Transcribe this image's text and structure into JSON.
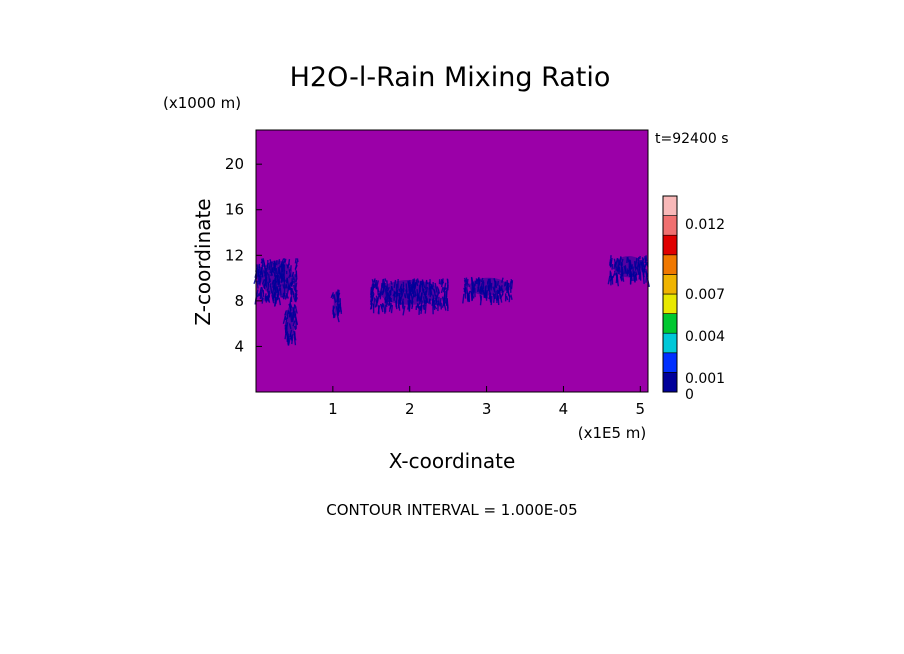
{
  "chart_data": {
    "type": "heatmap",
    "title": "H2O-l-Rain Mixing Ratio",
    "ylabel": "Z-coordinate",
    "yunit": "(x1000 m)",
    "xlabel": "X-coordinate",
    "xunit": "(x1E5 m)",
    "time_label": "t=92400 s",
    "footer": "CONTOUR INTERVAL = 1.000E-05",
    "xlim": [
      0,
      5.1
    ],
    "ylim": [
      0,
      23
    ],
    "x_ticks": [
      "1",
      "2",
      "3",
      "4",
      "5"
    ],
    "x_tick_values": [
      1,
      2,
      3,
      4,
      5
    ],
    "y_ticks": [
      "4",
      "8",
      "12",
      "16",
      "20"
    ],
    "y_tick_values": [
      4,
      8,
      12,
      16,
      20
    ],
    "background_color": "#9b00a8",
    "colorbar": {
      "colors": [
        "#00009a",
        "#0030ff",
        "#00c8d8",
        "#00c830",
        "#e8e800",
        "#f0b400",
        "#f07800",
        "#e00000",
        "#f07070",
        "#f8b8b8"
      ],
      "tick_labels": [
        "0",
        "0.001",
        "0.004",
        "0.007",
        "0.012"
      ],
      "tick_values": [
        0,
        0.001,
        0.004,
        0.007,
        0.012
      ]
    },
    "rain_regions": [
      {
        "x": [
          0.0,
          0.55
        ],
        "z": [
          7.5,
          12.5
        ],
        "color": "#00009a"
      },
      {
        "x": [
          0.38,
          0.52
        ],
        "z": [
          3.8,
          8.5
        ],
        "color": "#00009a"
      },
      {
        "x": [
          1.0,
          1.1
        ],
        "z": [
          6.2,
          9.5
        ],
        "color": "#00009a"
      },
      {
        "x": [
          1.5,
          2.5
        ],
        "z": [
          7.0,
          10.5
        ],
        "color": "#00009a"
      },
      {
        "x": [
          2.7,
          3.35
        ],
        "z": [
          8.0,
          10.5
        ],
        "color": "#00009a"
      },
      {
        "x": [
          4.6,
          5.1
        ],
        "z": [
          9.5,
          12.5
        ],
        "color": "#00009a"
      }
    ]
  }
}
